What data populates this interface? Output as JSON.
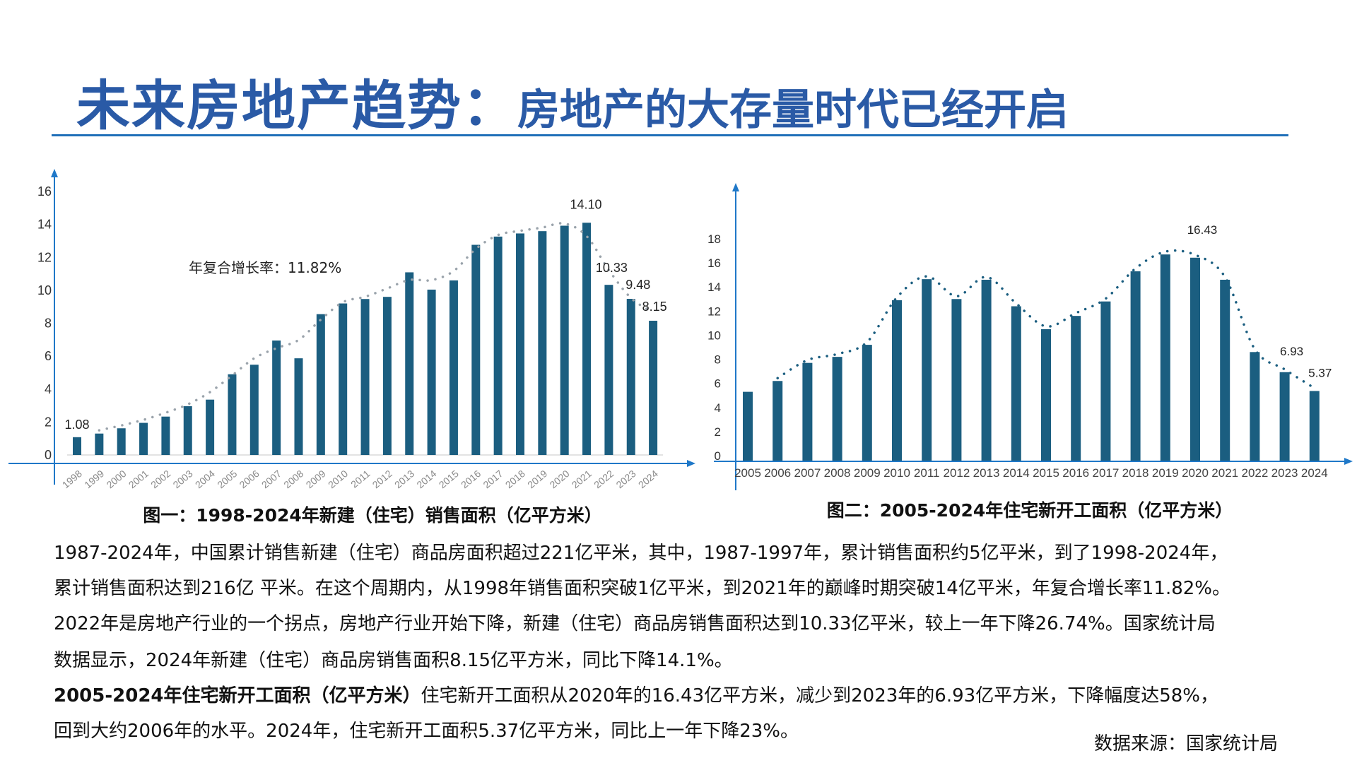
{
  "title": {
    "main": "未来房地产趋势：",
    "sub": "房地产的大存量时代已经开启"
  },
  "colors": {
    "title": "#2a5aa6",
    "axis": "#1f78c8",
    "bar": "#1b5e80",
    "trend1": "#9aa3ab",
    "trend2": "#1b5e80"
  },
  "chart_data": [
    {
      "type": "bar",
      "caption": "图一：1998-2024年新建（住宅）销售面积（亿平方米）",
      "annotation": "年复合增长率：11.82%",
      "categories": [
        "1998",
        "1999",
        "2000",
        "2001",
        "2002",
        "2003",
        "2004",
        "2005",
        "2006",
        "2007",
        "2008",
        "2009",
        "2010",
        "2011",
        "2012",
        "2013",
        "2014",
        "2015",
        "2016",
        "2017",
        "2018",
        "2019",
        "2020",
        "2021",
        "2022",
        "2023",
        "2024"
      ],
      "values": [
        1.08,
        1.3,
        1.62,
        1.95,
        2.33,
        2.96,
        3.36,
        4.9,
        5.48,
        6.95,
        5.87,
        8.55,
        9.2,
        9.47,
        9.6,
        11.09,
        10.04,
        10.6,
        12.76,
        13.26,
        13.45,
        13.59,
        13.92,
        14.1,
        10.33,
        9.48,
        8.15
      ],
      "data_labels": {
        "1998": "1.08",
        "2021": "14.10",
        "2022": "10.33",
        "2023": "9.48",
        "2024": "8.15"
      },
      "yticks": [
        "0",
        "2",
        "4",
        "6",
        "8",
        "10",
        "12",
        "14",
        "16"
      ],
      "ylim": [
        0,
        16
      ],
      "trendline": "dotted",
      "grid": false
    },
    {
      "type": "bar",
      "caption": "图二：2005-2024年住宅新开工面积（亿平方米）",
      "categories": [
        "2005",
        "2006",
        "2007",
        "2008",
        "2009",
        "2010",
        "2011",
        "2012",
        "2013",
        "2014",
        "2015",
        "2016",
        "2017",
        "2018",
        "2019",
        "2020",
        "2021",
        "2022",
        "2023",
        "2024"
      ],
      "values": [
        5.3,
        6.2,
        7.7,
        8.2,
        9.2,
        12.9,
        14.65,
        13.0,
        14.6,
        12.4,
        10.5,
        11.6,
        12.8,
        15.3,
        16.7,
        16.43,
        14.6,
        8.6,
        6.93,
        5.37
      ],
      "data_labels": {
        "2020": "16.43",
        "2023": "6.93",
        "2024": "5.37"
      },
      "yticks": [
        "0",
        "2",
        "4",
        "6",
        "8",
        "10",
        "12",
        "14",
        "16",
        "18"
      ],
      "ylim": [
        0,
        18
      ],
      "trendline": "dotted",
      "grid": false
    }
  ],
  "body": {
    "lines": [
      "1987-2024年，中国累计销售新建（住宅）商品房面积超过221亿平米，其中，1987-1997年，累计销售面积约5亿平米，到了1998-2024年，",
      "累计销售面积达到216亿 平米。在这个周期内，从1998年销售面积突破1亿平米，到2021年的巅峰时期突破14亿平米，年复合增长率11.82%。",
      "2022年是房地产行业的一个拐点，房地产行业开始下降，新建（住宅）商品房销售面积达到10.33亿平米，较上一年下降26.74%。国家统计局",
      "数据显示，2024年新建（住宅）商品房销售面积8.15亿平方米，同比下降14.1%。"
    ],
    "bold_lead": "2005-2024年住宅新开工面积（亿平方米）",
    "line5_rest": "住宅新开工面积从2020年的16.43亿平方米，减少到2023年的6.93亿平方米，下降幅度达58%，",
    "line6": "回到大约2006年的水平。2024年，住宅新开工面积5.37亿平方米，同比上一年下降23%。"
  },
  "source": "数据来源：国家统计局"
}
